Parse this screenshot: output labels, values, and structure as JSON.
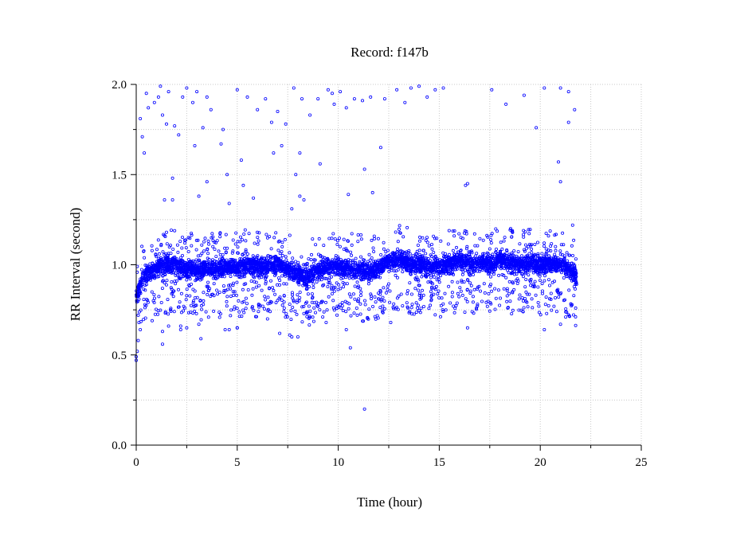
{
  "chart_data": {
    "type": "scatter",
    "title": "Record:  f147b",
    "xlabel": "Time (hour)",
    "ylabel": "RR Interval (second)",
    "xlim": [
      0,
      25
    ],
    "ylim": [
      0.0,
      2.0
    ],
    "x_ticks": [
      "0",
      "5",
      "10",
      "15",
      "20",
      "25"
    ],
    "y_ticks": [
      "0.0",
      "0.5",
      "1.0",
      "1.5",
      "2.0"
    ],
    "x_tick_values": [
      0,
      5,
      10,
      15,
      20,
      25
    ],
    "y_tick_values": [
      0.0,
      0.5,
      1.0,
      1.5,
      2.0
    ],
    "x_minor_tick_values": [
      2.5,
      7.5,
      12.5,
      17.5,
      22.5
    ],
    "y_minor_tick_values": [
      0.25,
      0.75,
      1.25,
      1.75
    ],
    "grid": true,
    "marker_color": "#0000ff",
    "series": [
      {
        "baseline_trend": {
          "x": [
            0.0,
            0.3,
            0.6,
            1.0,
            1.5,
            2.0,
            2.5,
            3.0,
            3.5,
            4.0,
            4.5,
            5.0,
            5.5,
            6.0,
            6.5,
            7.0,
            7.5,
            8.0,
            8.5,
            9.0,
            9.5,
            10.0,
            10.5,
            11.0,
            11.5,
            12.0,
            12.5,
            13.0,
            13.5,
            14.0,
            14.5,
            15.0,
            15.5,
            16.0,
            16.5,
            17.0,
            17.5,
            18.0,
            18.5,
            19.0,
            19.5,
            20.0,
            20.5,
            21.0,
            21.5,
            21.8
          ],
          "y": [
            0.82,
            0.92,
            0.95,
            0.98,
            1.0,
            0.99,
            0.98,
            0.97,
            0.98,
            0.98,
            0.99,
            0.98,
            1.0,
            0.99,
            0.99,
            1.0,
            0.98,
            0.95,
            0.93,
            0.97,
            0.99,
            0.99,
            0.98,
            0.97,
            0.96,
            0.98,
            1.02,
            1.03,
            1.01,
            1.0,
            0.99,
            0.99,
            1.0,
            1.02,
            1.01,
            1.01,
            1.0,
            1.03,
            1.01,
            1.0,
            1.01,
            1.0,
            1.01,
            1.0,
            0.97,
            0.93
          ]
        },
        "outliers": {
          "x": [
            0.2,
            0.4,
            0.5,
            0.6,
            1.1,
            1.2,
            1.3,
            1.6,
            1.9,
            2.3,
            2.5,
            2.8,
            3.0,
            3.5,
            3.7,
            4.2,
            5.0,
            5.5,
            6.0,
            6.4,
            6.7,
            7.0,
            7.2,
            7.4,
            7.8,
            8.2,
            8.6,
            9.0,
            9.5,
            9.8,
            10.1,
            10.4,
            10.8,
            11.2,
            11.6,
            12.3,
            12.9,
            13.3,
            13.6,
            14.0,
            14.4,
            14.8,
            15.2,
            17.6,
            18.3,
            19.2,
            19.8,
            20.2,
            21.0,
            21.4,
            21.7,
            0.3,
            0.9,
            1.5,
            2.1,
            2.9,
            3.3,
            4.3,
            5.2,
            6.8,
            8.1,
            9.7,
            12.1,
            16.4,
            20.9,
            21.4,
            1.4,
            1.8,
            3.1,
            4.5,
            5.3,
            7.9,
            8.3,
            10.5,
            11.3,
            16.3,
            21.0,
            21.6,
            1.8,
            3.5,
            4.6,
            5.8,
            7.7,
            8.1,
            9.1,
            11.7,
            1.3,
            1.6,
            2.2,
            2.5,
            3.2,
            4.4,
            5.0,
            7.6,
            8.0,
            10.6,
            0.0,
            0.1
          ],
          "y": [
            1.81,
            1.62,
            1.95,
            1.87,
            1.93,
            1.99,
            1.83,
            1.96,
            1.77,
            1.93,
            1.98,
            1.9,
            1.96,
            1.93,
            1.86,
            1.67,
            1.97,
            1.93,
            1.86,
            1.92,
            1.79,
            1.85,
            1.66,
            1.78,
            1.98,
            1.92,
            1.83,
            1.92,
            1.97,
            1.89,
            1.96,
            1.87,
            1.92,
            1.91,
            1.93,
            1.92,
            1.97,
            1.9,
            1.98,
            1.99,
            1.93,
            1.97,
            1.98,
            1.97,
            1.89,
            1.94,
            1.76,
            1.98,
            1.98,
            1.96,
            1.86,
            1.71,
            1.9,
            1.78,
            1.72,
            1.66,
            1.76,
            1.75,
            1.58,
            1.62,
            1.62,
            1.95,
            1.65,
            1.45,
            1.57,
            1.79,
            1.36,
            1.36,
            1.38,
            1.5,
            1.44,
            1.5,
            1.36,
            1.39,
            1.53,
            1.44,
            1.46,
            1.22,
            1.48,
            1.46,
            1.34,
            1.37,
            1.31,
            1.38,
            1.56,
            1.4,
            0.56,
            0.66,
            0.64,
            0.65,
            0.59,
            0.64,
            0.65,
            0.61,
            0.6,
            0.54,
            0.49,
            0.72
          ]
        },
        "low_excursions": {
          "x": [
            0.0,
            0.05,
            0.1,
            0.2,
            1.3,
            2.2,
            3.1,
            4.6,
            5.0,
            6.5,
            7.1,
            7.7,
            8.3,
            9.4,
            10.4,
            11.3,
            12.6,
            16.4,
            20.2,
            21.0
          ],
          "y": [
            0.47,
            0.52,
            0.58,
            0.64,
            0.63,
            0.66,
            0.67,
            0.64,
            0.65,
            0.7,
            0.62,
            0.6,
            0.73,
            0.68,
            0.64,
            0.2,
            0.68,
            0.65,
            0.64,
            0.67
          ]
        }
      }
    ]
  }
}
